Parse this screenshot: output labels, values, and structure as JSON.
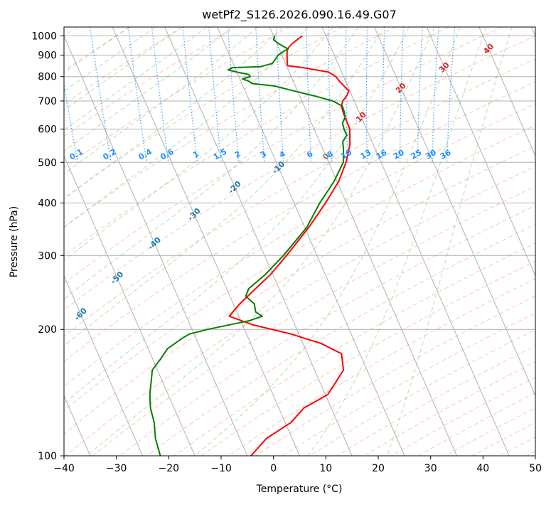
{
  "chart_data": {
    "type": "line",
    "title": "wetPf2_S126.2026.090.16.49.G07",
    "xlabel": "Temperature (°C)",
    "ylabel": "Pressure (hPa)",
    "xlim": [
      -40,
      50
    ],
    "ylim": [
      1050,
      100
    ],
    "x_ticks": [
      "−40",
      "−30",
      "−20",
      "−10",
      "0",
      "10",
      "20",
      "30",
      "40",
      "50"
    ],
    "y_ticks": [
      "100",
      "200",
      "300",
      "400",
      "500",
      "600",
      "700",
      "800",
      "900",
      "1000"
    ],
    "skew_degC_per_log_decade": 35,
    "series": [
      {
        "name": "Temperature",
        "color": "#ff0000",
        "points": [
          [
            1000,
            5.5
          ],
          [
            960,
            3.0
          ],
          [
            930,
            1.5
          ],
          [
            900,
            1.0
          ],
          [
            870,
            0.5
          ],
          [
            850,
            0.2
          ],
          [
            840,
            3.0
          ],
          [
            820,
            7.5
          ],
          [
            800,
            8.5
          ],
          [
            780,
            8.8
          ],
          [
            760,
            9.3
          ],
          [
            740,
            9.8
          ],
          [
            720,
            9.0
          ],
          [
            700,
            7.8
          ],
          [
            680,
            7.1
          ],
          [
            650,
            6.9
          ],
          [
            600,
            6.8
          ],
          [
            550,
            5.5
          ],
          [
            500,
            3.3
          ],
          [
            450,
            0.3
          ],
          [
            400,
            -4.0
          ],
          [
            350,
            -9.2
          ],
          [
            300,
            -15.8
          ],
          [
            270,
            -20.5
          ],
          [
            250,
            -24.5
          ],
          [
            230,
            -28.8
          ],
          [
            215,
            -31.8
          ],
          [
            205,
            -28.0
          ],
          [
            195,
            -21.5
          ],
          [
            185,
            -16.5
          ],
          [
            175,
            -13.5
          ],
          [
            160,
            -14.5
          ],
          [
            140,
            -19.5
          ],
          [
            130,
            -25.2
          ],
          [
            120,
            -28.9
          ],
          [
            110,
            -34.9
          ],
          [
            100,
            -39.3
          ]
        ]
      },
      {
        "name": "Dewpoint",
        "color": "#008000",
        "points": [
          [
            1000,
            0.2
          ],
          [
            980,
            -0.3
          ],
          [
            960,
            0.3
          ],
          [
            930,
            1.7
          ],
          [
            920,
            0.7
          ],
          [
            900,
            -0.7
          ],
          [
            880,
            -1.6
          ],
          [
            860,
            -2.5
          ],
          [
            845,
            -5.0
          ],
          [
            840,
            -10.5
          ],
          [
            830,
            -11.5
          ],
          [
            820,
            -10.0
          ],
          [
            810,
            -8.0
          ],
          [
            800,
            -7.8
          ],
          [
            790,
            -9.5
          ],
          [
            780,
            -8.5
          ],
          [
            770,
            -8.0
          ],
          [
            760,
            -4.0
          ],
          [
            740,
            -0.8
          ],
          [
            720,
            2.8
          ],
          [
            700,
            5.9
          ],
          [
            680,
            7.3
          ],
          [
            660,
            7.2
          ],
          [
            640,
            6.9
          ],
          [
            620,
            5.9
          ],
          [
            600,
            5.7
          ],
          [
            580,
            5.7
          ],
          [
            560,
            4.4
          ],
          [
            540,
            4.0
          ],
          [
            500,
            2.8
          ],
          [
            450,
            -0.6
          ],
          [
            400,
            -5.1
          ],
          [
            350,
            -9.6
          ],
          [
            300,
            -16.4
          ],
          [
            270,
            -21.5
          ],
          [
            250,
            -25.8
          ],
          [
            240,
            -27.0
          ],
          [
            230,
            -26.0
          ],
          [
            220,
            -26.4
          ],
          [
            215,
            -25.5
          ],
          [
            210,
            -28.2
          ],
          [
            200,
            -37.0
          ],
          [
            195,
            -40.9
          ],
          [
            190,
            -42.8
          ],
          [
            180,
            -46.3
          ],
          [
            170,
            -48.5
          ],
          [
            160,
            -51.0
          ],
          [
            150,
            -52.2
          ],
          [
            140,
            -53.5
          ],
          [
            130,
            -54.5
          ],
          [
            120,
            -55.0
          ],
          [
            110,
            -56.1
          ],
          [
            100,
            -56.6
          ]
        ]
      }
    ],
    "isotherms": [
      -100,
      -90,
      -80,
      -70,
      -60,
      -50,
      -40,
      -30,
      -20,
      -10,
      0,
      10,
      20,
      30,
      40
    ],
    "isotherm_label_color": "#1f77b4",
    "mixing_ratios": [
      "0.1",
      "0.2",
      "0.4",
      "0.6",
      "1",
      "1.5",
      "2",
      "3",
      "4",
      "6",
      "8",
      "10",
      "13",
      "16",
      "20",
      "25",
      "30",
      "36"
    ],
    "mixing_ratio_values": [
      0.1,
      0.2,
      0.4,
      0.6,
      1,
      1.5,
      2,
      3,
      4,
      6,
      8,
      10,
      13,
      16,
      20,
      25,
      30,
      36
    ],
    "mixing_ratio_label_color": "#1e90ff",
    "wet_bulb_zero_label": "0",
    "moist_adiabat_labels": [
      "10",
      "20",
      "30",
      "40"
    ],
    "moist_adiabat_label_color": "#d62728",
    "dry_adiabat_color": "#ff7f50",
    "moist_adiabat_color": "#2ca02c",
    "grid_color": "#b0b0b0",
    "grid": true
  }
}
